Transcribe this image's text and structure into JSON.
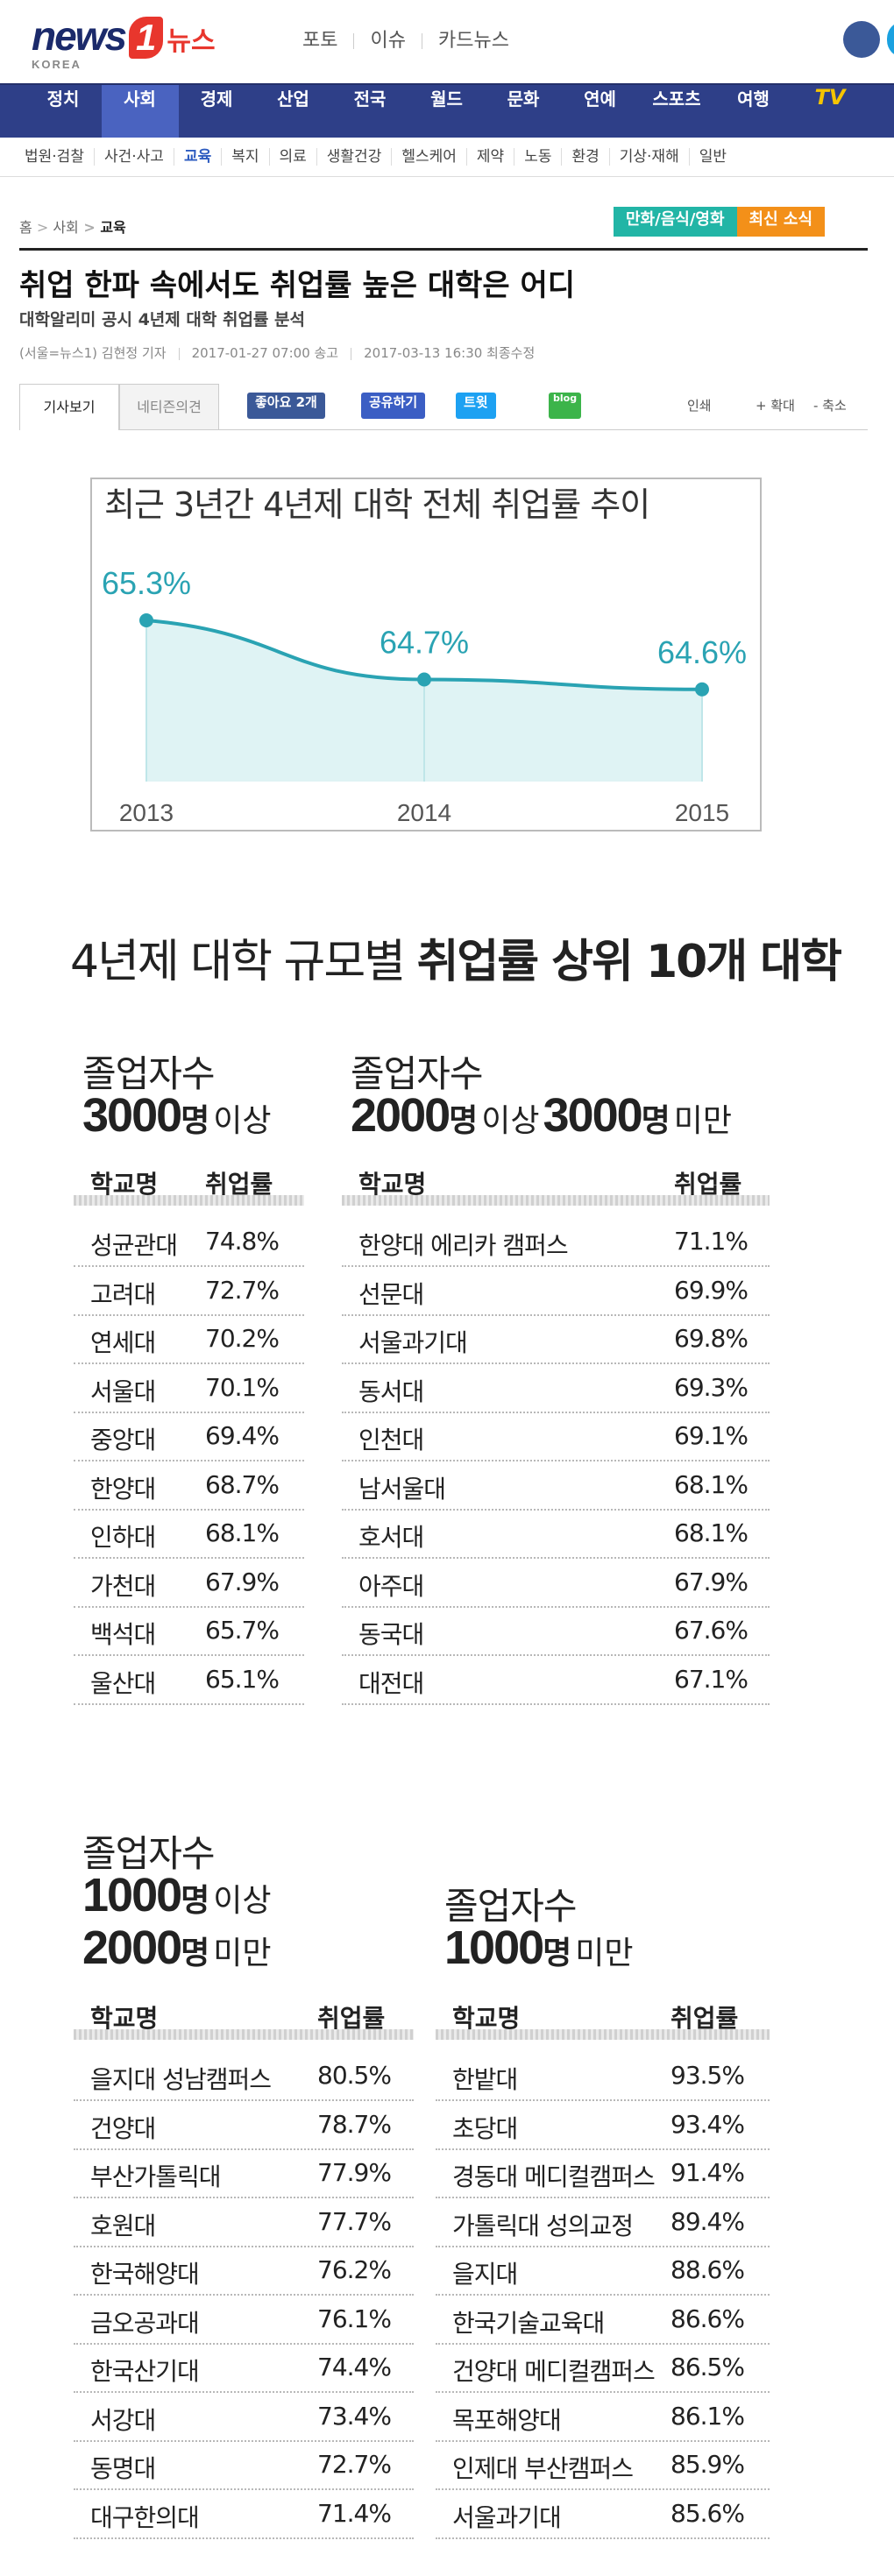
{
  "header": {
    "logo": "news",
    "logo_num": "1",
    "logo_korean": "뉴스",
    "logo_sub": "KOREA",
    "links": [
      "포토",
      "이슈",
      "카드뉴스"
    ]
  },
  "nav": {
    "items": [
      "정치",
      "사회",
      "경제",
      "산업",
      "전국",
      "월드",
      "문화",
      "연예",
      "스포츠",
      "여행",
      "TV"
    ],
    "active": 1
  },
  "subnav": {
    "items": [
      "법원·검찰",
      "사건·사고",
      "교육",
      "복지",
      "의료",
      "생활건강",
      "헬스케어",
      "제약",
      "노동",
      "환경",
      "기상·재해",
      "일반"
    ],
    "active": 2
  },
  "breadcrumb": [
    "홈",
    "사회",
    "교육"
  ],
  "banner": [
    "만화/음식/영화",
    "최신 소식"
  ],
  "article": {
    "title": "취업 한파 속에서도 취업률 높은 대학은 어디",
    "subtitle": "대학알리미 공시 4년제 대학 취업률 분석",
    "byline": "(서울=뉴스1) 김현정 기자",
    "published": "2017-01-27 07:00 송고",
    "modified": "2017-03-13 16:30 최종수정",
    "tabs": [
      "기사보기",
      "네티즌의견"
    ],
    "like": "좋아요 2개",
    "share": "공유하기",
    "tweet": "트윗",
    "blog": "blog",
    "tools": [
      "인쇄",
      "+ 확대",
      "- 축소"
    ]
  },
  "line_chart": {
    "type": "line",
    "title": "최근 3년간 4년제 대학 전체 취업률 추이",
    "categories": [
      "2013",
      "2014",
      "2015"
    ],
    "values": [
      65.3,
      64.7,
      64.6
    ],
    "value_labels": [
      "65.3%",
      "64.7%",
      "64.6%"
    ],
    "ylim": [
      63.7,
      66.1
    ],
    "color": "#2aa3b3",
    "area_color": "#dff3f4"
  },
  "infographic": {
    "title_plain": "4년제 대학 규모별",
    "title_bold": "취업률 상위 10개 대학",
    "columns": [
      "학교명",
      "취업률"
    ],
    "groups": [
      {
        "label": "졸업자수",
        "criteria": [
          [
            "3000",
            "명",
            "이상"
          ]
        ],
        "rows": [
          [
            "성균관대",
            "74.8%"
          ],
          [
            "고려대",
            "72.7%"
          ],
          [
            "연세대",
            "70.2%"
          ],
          [
            "서울대",
            "70.1%"
          ],
          [
            "중앙대",
            "69.4%"
          ],
          [
            "한양대",
            "68.7%"
          ],
          [
            "인하대",
            "68.1%"
          ],
          [
            "가천대",
            "67.9%"
          ],
          [
            "백석대",
            "65.7%"
          ],
          [
            "울산대",
            "65.1%"
          ]
        ]
      },
      {
        "label": "졸업자수",
        "criteria": [
          [
            "2000",
            "명",
            "이상",
            "3000",
            "명",
            "미만"
          ]
        ],
        "rows": [
          [
            "한양대 에리카 캠퍼스",
            "71.1%"
          ],
          [
            "선문대",
            "69.9%"
          ],
          [
            "서울과기대",
            "69.8%"
          ],
          [
            "동서대",
            "69.3%"
          ],
          [
            "인천대",
            "69.1%"
          ],
          [
            "남서울대",
            "68.1%"
          ],
          [
            "호서대",
            "68.1%"
          ],
          [
            "아주대",
            "67.9%"
          ],
          [
            "동국대",
            "67.6%"
          ],
          [
            "대전대",
            "67.1%"
          ]
        ]
      },
      {
        "label": "졸업자수",
        "criteria": [
          [
            "1000",
            "명",
            "이상"
          ],
          [
            "2000",
            "명",
            "미만"
          ]
        ],
        "rows": [
          [
            "을지대 성남캠퍼스",
            "80.5%"
          ],
          [
            "건양대",
            "78.7%"
          ],
          [
            "부산가톨릭대",
            "77.9%"
          ],
          [
            "호원대",
            "77.7%"
          ],
          [
            "한국해양대",
            "76.2%"
          ],
          [
            "금오공과대",
            "76.1%"
          ],
          [
            "한국산기대",
            "74.4%"
          ],
          [
            "서강대",
            "73.4%"
          ],
          [
            "동명대",
            "72.7%"
          ],
          [
            "대구한의대",
            "71.4%"
          ]
        ]
      },
      {
        "label": "졸업자수",
        "criteria": [
          [
            "1000",
            "명",
            "미만"
          ]
        ],
        "rows": [
          [
            "한밭대",
            "93.5%"
          ],
          [
            "초당대",
            "93.4%"
          ],
          [
            "경동대 메디컬캠퍼스",
            "91.4%"
          ],
          [
            "가톨릭대 성의교정",
            "89.4%"
          ],
          [
            "을지대",
            "88.6%"
          ],
          [
            "한국기술교육대",
            "86.6%"
          ],
          [
            "건양대 메디컬캠퍼스",
            "86.5%"
          ],
          [
            "목포해양대",
            "86.1%"
          ],
          [
            "인제대 부산캠퍼스",
            "85.9%"
          ],
          [
            "서울과기대",
            "85.6%"
          ]
        ]
      }
    ]
  }
}
